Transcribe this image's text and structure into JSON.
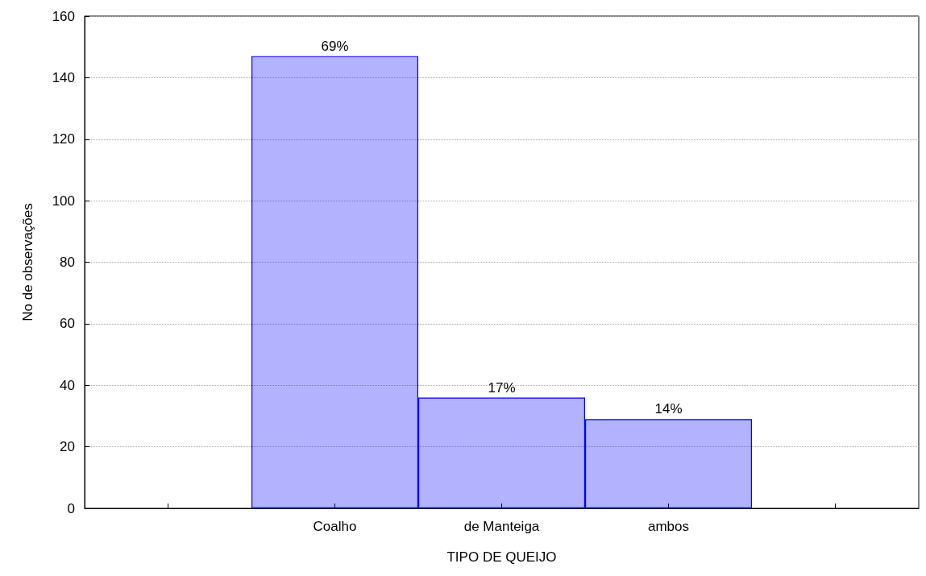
{
  "chart_data": {
    "type": "bar",
    "xlabel": "TIPO DE QUEIJO",
    "ylabel": "No de observações",
    "categories": [
      null,
      "Coalho",
      "de Manteiga",
      "ambos",
      null
    ],
    "values": [
      null,
      147,
      36,
      29,
      null
    ],
    "annotations": [
      {
        "text": "69%",
        "x": "Coalho",
        "y": 147
      },
      {
        "text": "17%",
        "x": "de Manteiga",
        "y": 36
      },
      {
        "text": "14%",
        "x": "ambos",
        "y": 29
      }
    ],
    "color": "#0000ff",
    "ylim": [
      0,
      160
    ],
    "yticks": [
      0,
      20,
      40,
      60,
      80,
      100,
      120,
      140,
      160
    ],
    "grid": "y"
  }
}
